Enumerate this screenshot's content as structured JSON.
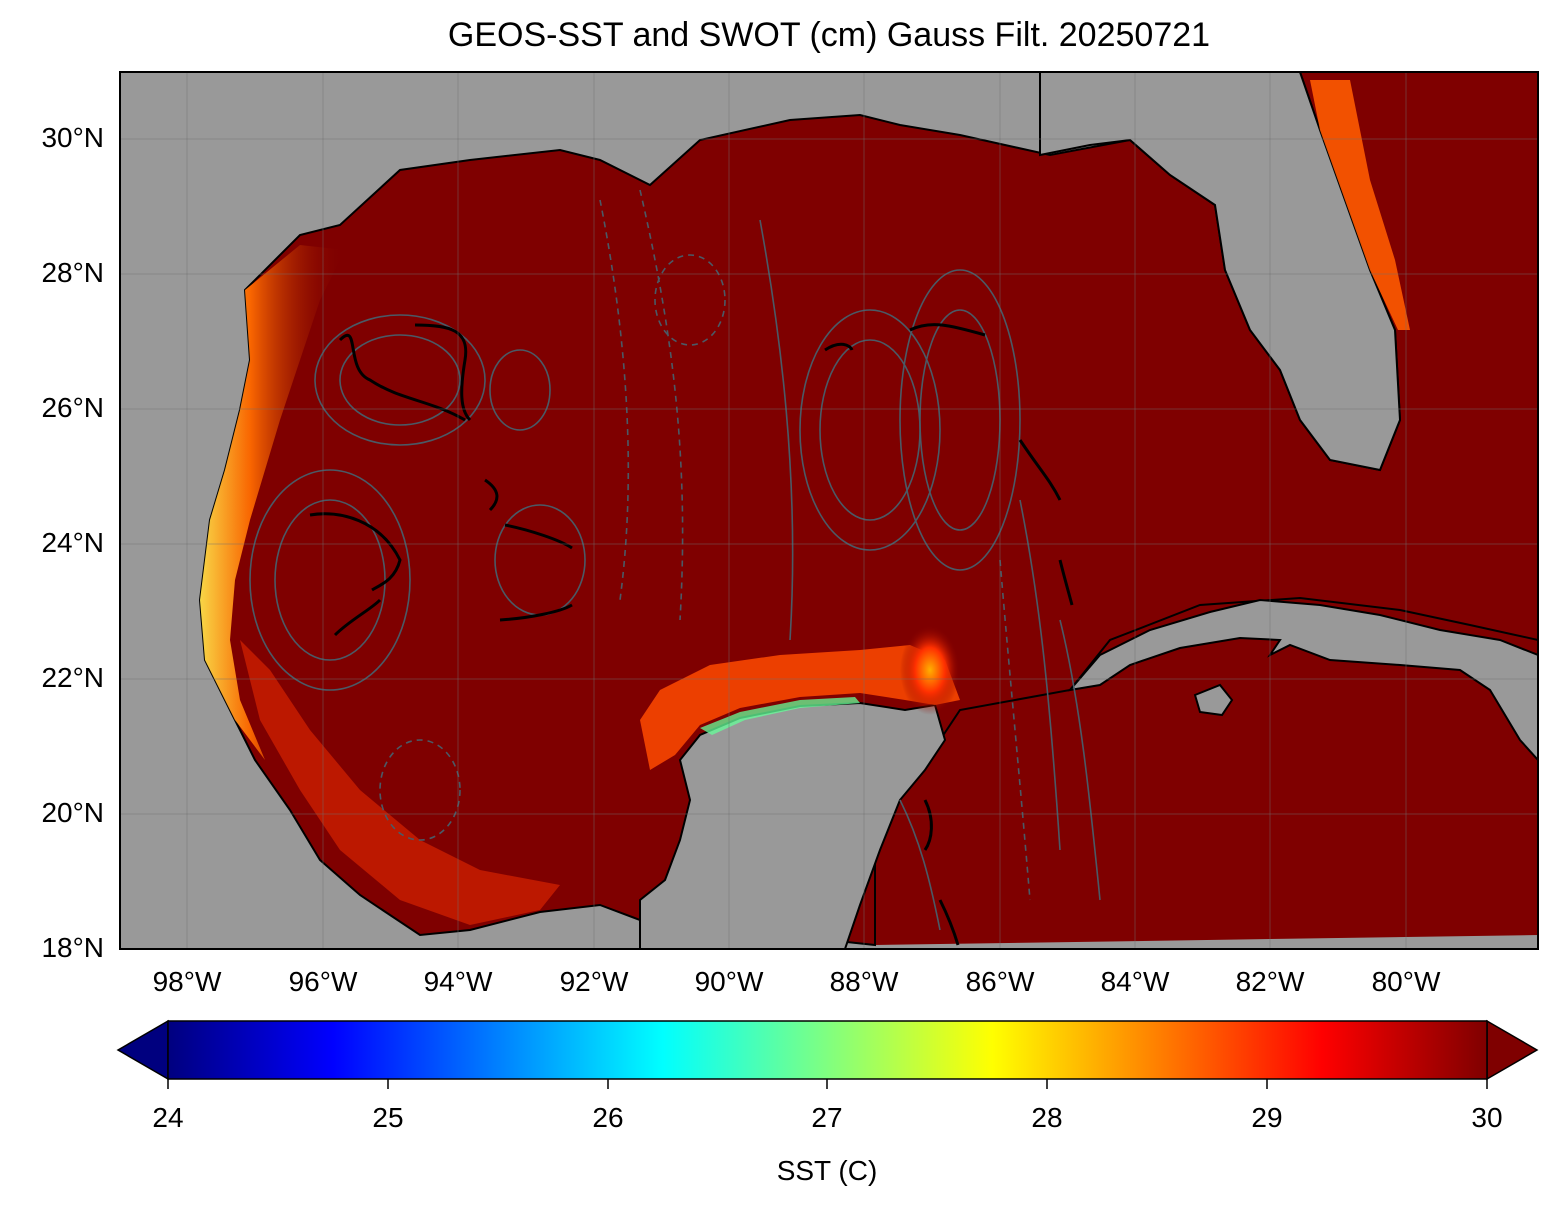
{
  "title": "GEOS-SST  and SWOT (cm) Gauss Filt. 20250721",
  "lat_labels": [
    "30°N",
    "28°N",
    "26°N",
    "24°N",
    "22°N",
    "20°N",
    "18°N"
  ],
  "lon_labels": [
    "98°W",
    "96°W",
    "94°W",
    "92°W",
    "90°W",
    "88°W",
    "86°W",
    "84°W",
    "82°W",
    "80°W"
  ],
  "colorbar": {
    "label": "SST (C)",
    "ticks": [
      "24",
      "25",
      "26",
      "27",
      "28",
      "29",
      "30"
    ],
    "min": 24,
    "max": 30,
    "extend": "both",
    "colormap": [
      "#00007f",
      "#0000ff",
      "#0080ff",
      "#00ffff",
      "#80ff80",
      "#ffff00",
      "#ff8000",
      "#ff0000",
      "#7f0000"
    ]
  },
  "extent": {
    "lon_min": -99,
    "lon_max": -78.1,
    "lat_min": 18,
    "lat_max": 31
  },
  "colors": {
    "land": "#999999",
    "ocean_sst": "#7f0000",
    "coastline": "#000000",
    "contour": "#4a5a66",
    "gridline": "#6e6e6e"
  }
}
